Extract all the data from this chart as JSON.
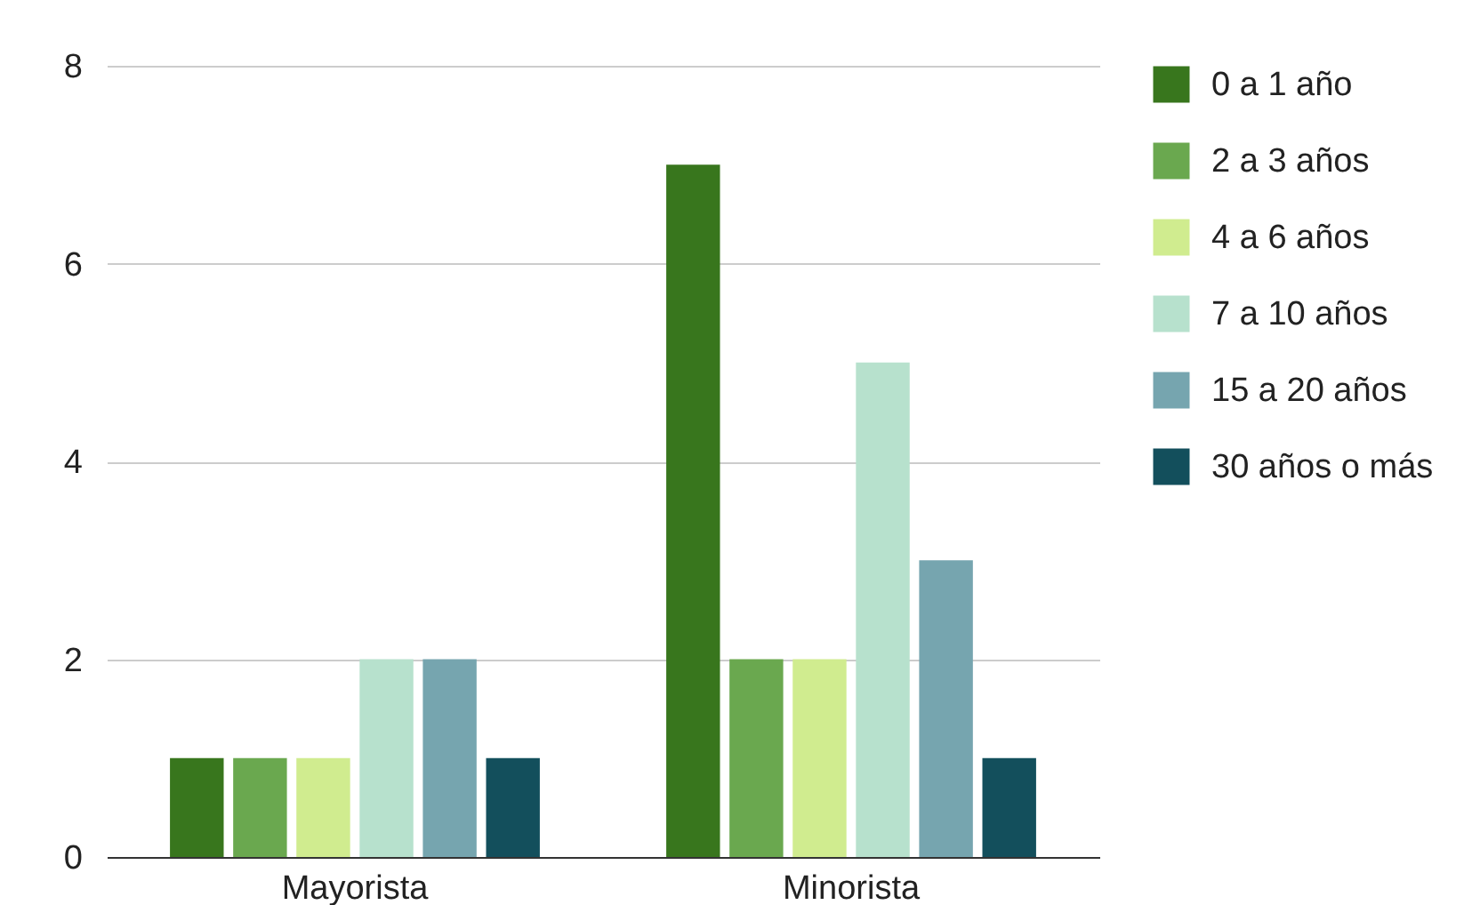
{
  "chart_data": {
    "type": "bar",
    "categories": [
      "Mayorista",
      "Minorista"
    ],
    "series": [
      {
        "name": "0 a 1 año",
        "color": "#38761d",
        "values": [
          1,
          7
        ]
      },
      {
        "name": "2 a 3 años",
        "color": "#6aa84f",
        "values": [
          1,
          2
        ]
      },
      {
        "name": "4 a 6 años",
        "color": "#d0ec8f",
        "values": [
          1,
          2
        ]
      },
      {
        "name": "7 a 10 años",
        "color": "#b7e1cd",
        "values": [
          2,
          5
        ]
      },
      {
        "name": "15 a 20 años",
        "color": "#76a5af",
        "values": [
          2,
          3
        ]
      },
      {
        "name": "30 años o más",
        "color": "#134f5c",
        "values": [
          1,
          1
        ]
      }
    ],
    "ylim": [
      0,
      8
    ],
    "yticks": [
      0,
      2,
      4,
      6,
      8
    ],
    "grid": "y",
    "legend": "top right"
  }
}
